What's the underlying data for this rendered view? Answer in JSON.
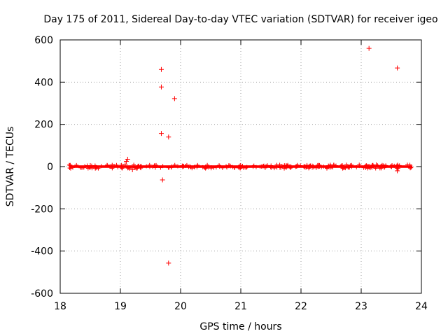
{
  "chart_data": {
    "type": "scatter",
    "title": "Day 175 of 2011, Sidereal Day-to-day VTEC variation (SDTVAR) for receiver igeo",
    "xlabel": "GPS time / hours",
    "ylabel": "SDTVAR / TECUs",
    "xlim": [
      18,
      24
    ],
    "ylim": [
      -600,
      600
    ],
    "xticks": [
      18,
      19,
      20,
      21,
      22,
      23,
      24
    ],
    "yticks": [
      -600,
      -400,
      -200,
      0,
      200,
      400,
      600
    ],
    "grid": true,
    "marker": "+",
    "marker_color": "#ff0000",
    "dense_band": {
      "x_range": [
        18.15,
        23.85
      ],
      "y_range": [
        -6,
        6
      ]
    },
    "series": [
      {
        "name": "SDTVAR",
        "points": [
          [
            19.68,
            460
          ],
          [
            19.68,
            377
          ],
          [
            19.9,
            322
          ],
          [
            19.68,
            157
          ],
          [
            19.8,
            140
          ],
          [
            19.1,
            25
          ],
          [
            19.12,
            35
          ],
          [
            19.08,
            10
          ],
          [
            19.2,
            -15
          ],
          [
            19.15,
            -8
          ],
          [
            19.7,
            -63
          ],
          [
            19.8,
            -457
          ],
          [
            23.13,
            560
          ],
          [
            23.6,
            467
          ],
          [
            23.6,
            -20
          ],
          [
            23.25,
            8
          ],
          [
            18.5,
            5
          ],
          [
            20.8,
            4
          ],
          [
            21.6,
            -3
          ]
        ]
      }
    ]
  }
}
